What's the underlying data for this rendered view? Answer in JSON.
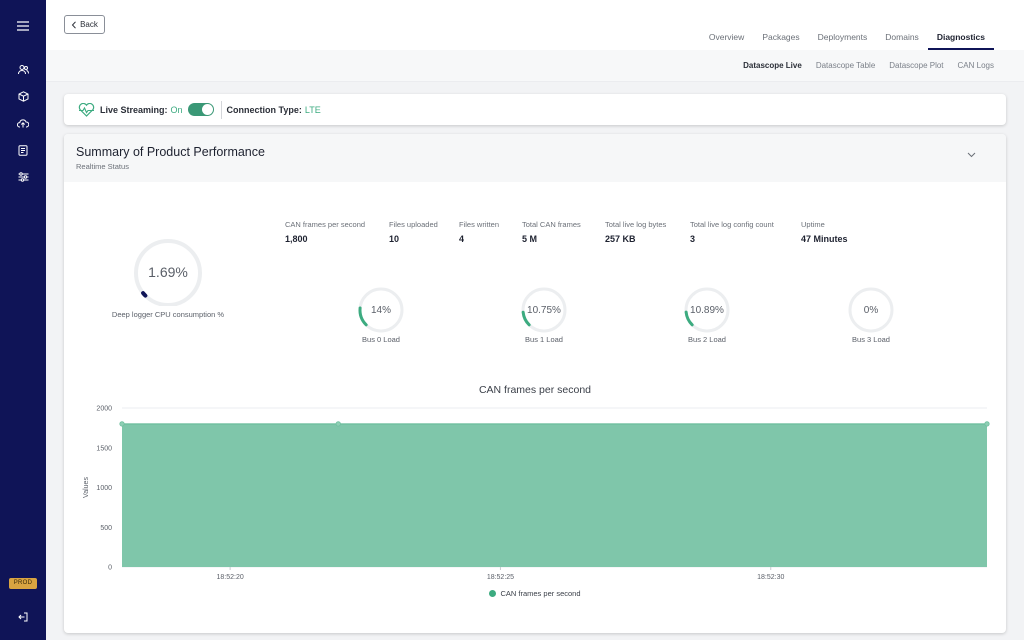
{
  "header": {
    "back_label": "Back",
    "tabs": [
      {
        "label": "Overview",
        "active": false
      },
      {
        "label": "Packages",
        "active": false
      },
      {
        "label": "Deployments",
        "active": false
      },
      {
        "label": "Domains",
        "active": false
      },
      {
        "label": "Diagnostics",
        "active": true
      }
    ]
  },
  "subtabs": [
    {
      "label": "Datascope Live",
      "active": true
    },
    {
      "label": "Datascope Table",
      "active": false
    },
    {
      "label": "Datascope Plot",
      "active": false
    },
    {
      "label": "CAN Logs",
      "active": false
    }
  ],
  "sidebar": {
    "env_badge": "PROD",
    "icons": [
      "menu-icon",
      "users-icon",
      "package-icon",
      "cloud-upload-icon",
      "document-icon",
      "sliders-icon",
      "logout-icon"
    ]
  },
  "streaming": {
    "live_label": "Live Streaming:",
    "live_value": "On",
    "connection_label": "Connection Type:",
    "connection_value": "LTE"
  },
  "summary": {
    "title": "Summary of Product Performance",
    "subtitle": "Realtime Status",
    "stats": [
      {
        "label": "CAN frames per second",
        "value": "1,800"
      },
      {
        "label": "Files uploaded",
        "value": "10"
      },
      {
        "label": "Files written",
        "value": "4"
      },
      {
        "label": "Total CAN frames",
        "value": "5 M"
      },
      {
        "label": "Total live log bytes",
        "value": "257 KB"
      },
      {
        "label": "Total live log config count",
        "value": "3"
      },
      {
        "label": "Uptime",
        "value": "47 Minutes"
      }
    ],
    "cpu_gauge": {
      "value_text": "1.69%",
      "fraction": 0.0169,
      "label": "Deep logger CPU consumption %"
    },
    "bus_gauges": [
      {
        "value_text": "14%",
        "fraction": 0.14,
        "label": "Bus 0 Load"
      },
      {
        "value_text": "10.75%",
        "fraction": 0.1075,
        "label": "Bus 1 Load"
      },
      {
        "value_text": "10.89%",
        "fraction": 0.1089,
        "label": "Bus 2 Load"
      },
      {
        "value_text": "0%",
        "fraction": 0.0,
        "label": "Bus 3 Load"
      }
    ]
  },
  "colors": {
    "sidebar": "#0f1457",
    "accent": "#3cab80",
    "area_fill": "#7fc6aa"
  },
  "chart_data": {
    "type": "area",
    "title": "CAN frames per second",
    "xlabel": "",
    "ylabel": "Values",
    "x_ticks": [
      "18:52:20",
      "18:52:25",
      "18:52:30"
    ],
    "x": [
      "18:52:18",
      "18:52:22",
      "18:52:34"
    ],
    "series": [
      {
        "name": "CAN frames per second",
        "values": [
          1800,
          1800,
          1800
        ]
      }
    ],
    "ylim": [
      0,
      2000
    ],
    "y_ticks": [
      0,
      500,
      1000,
      1500,
      2000
    ],
    "grid": true,
    "legend": "bottom-center"
  }
}
